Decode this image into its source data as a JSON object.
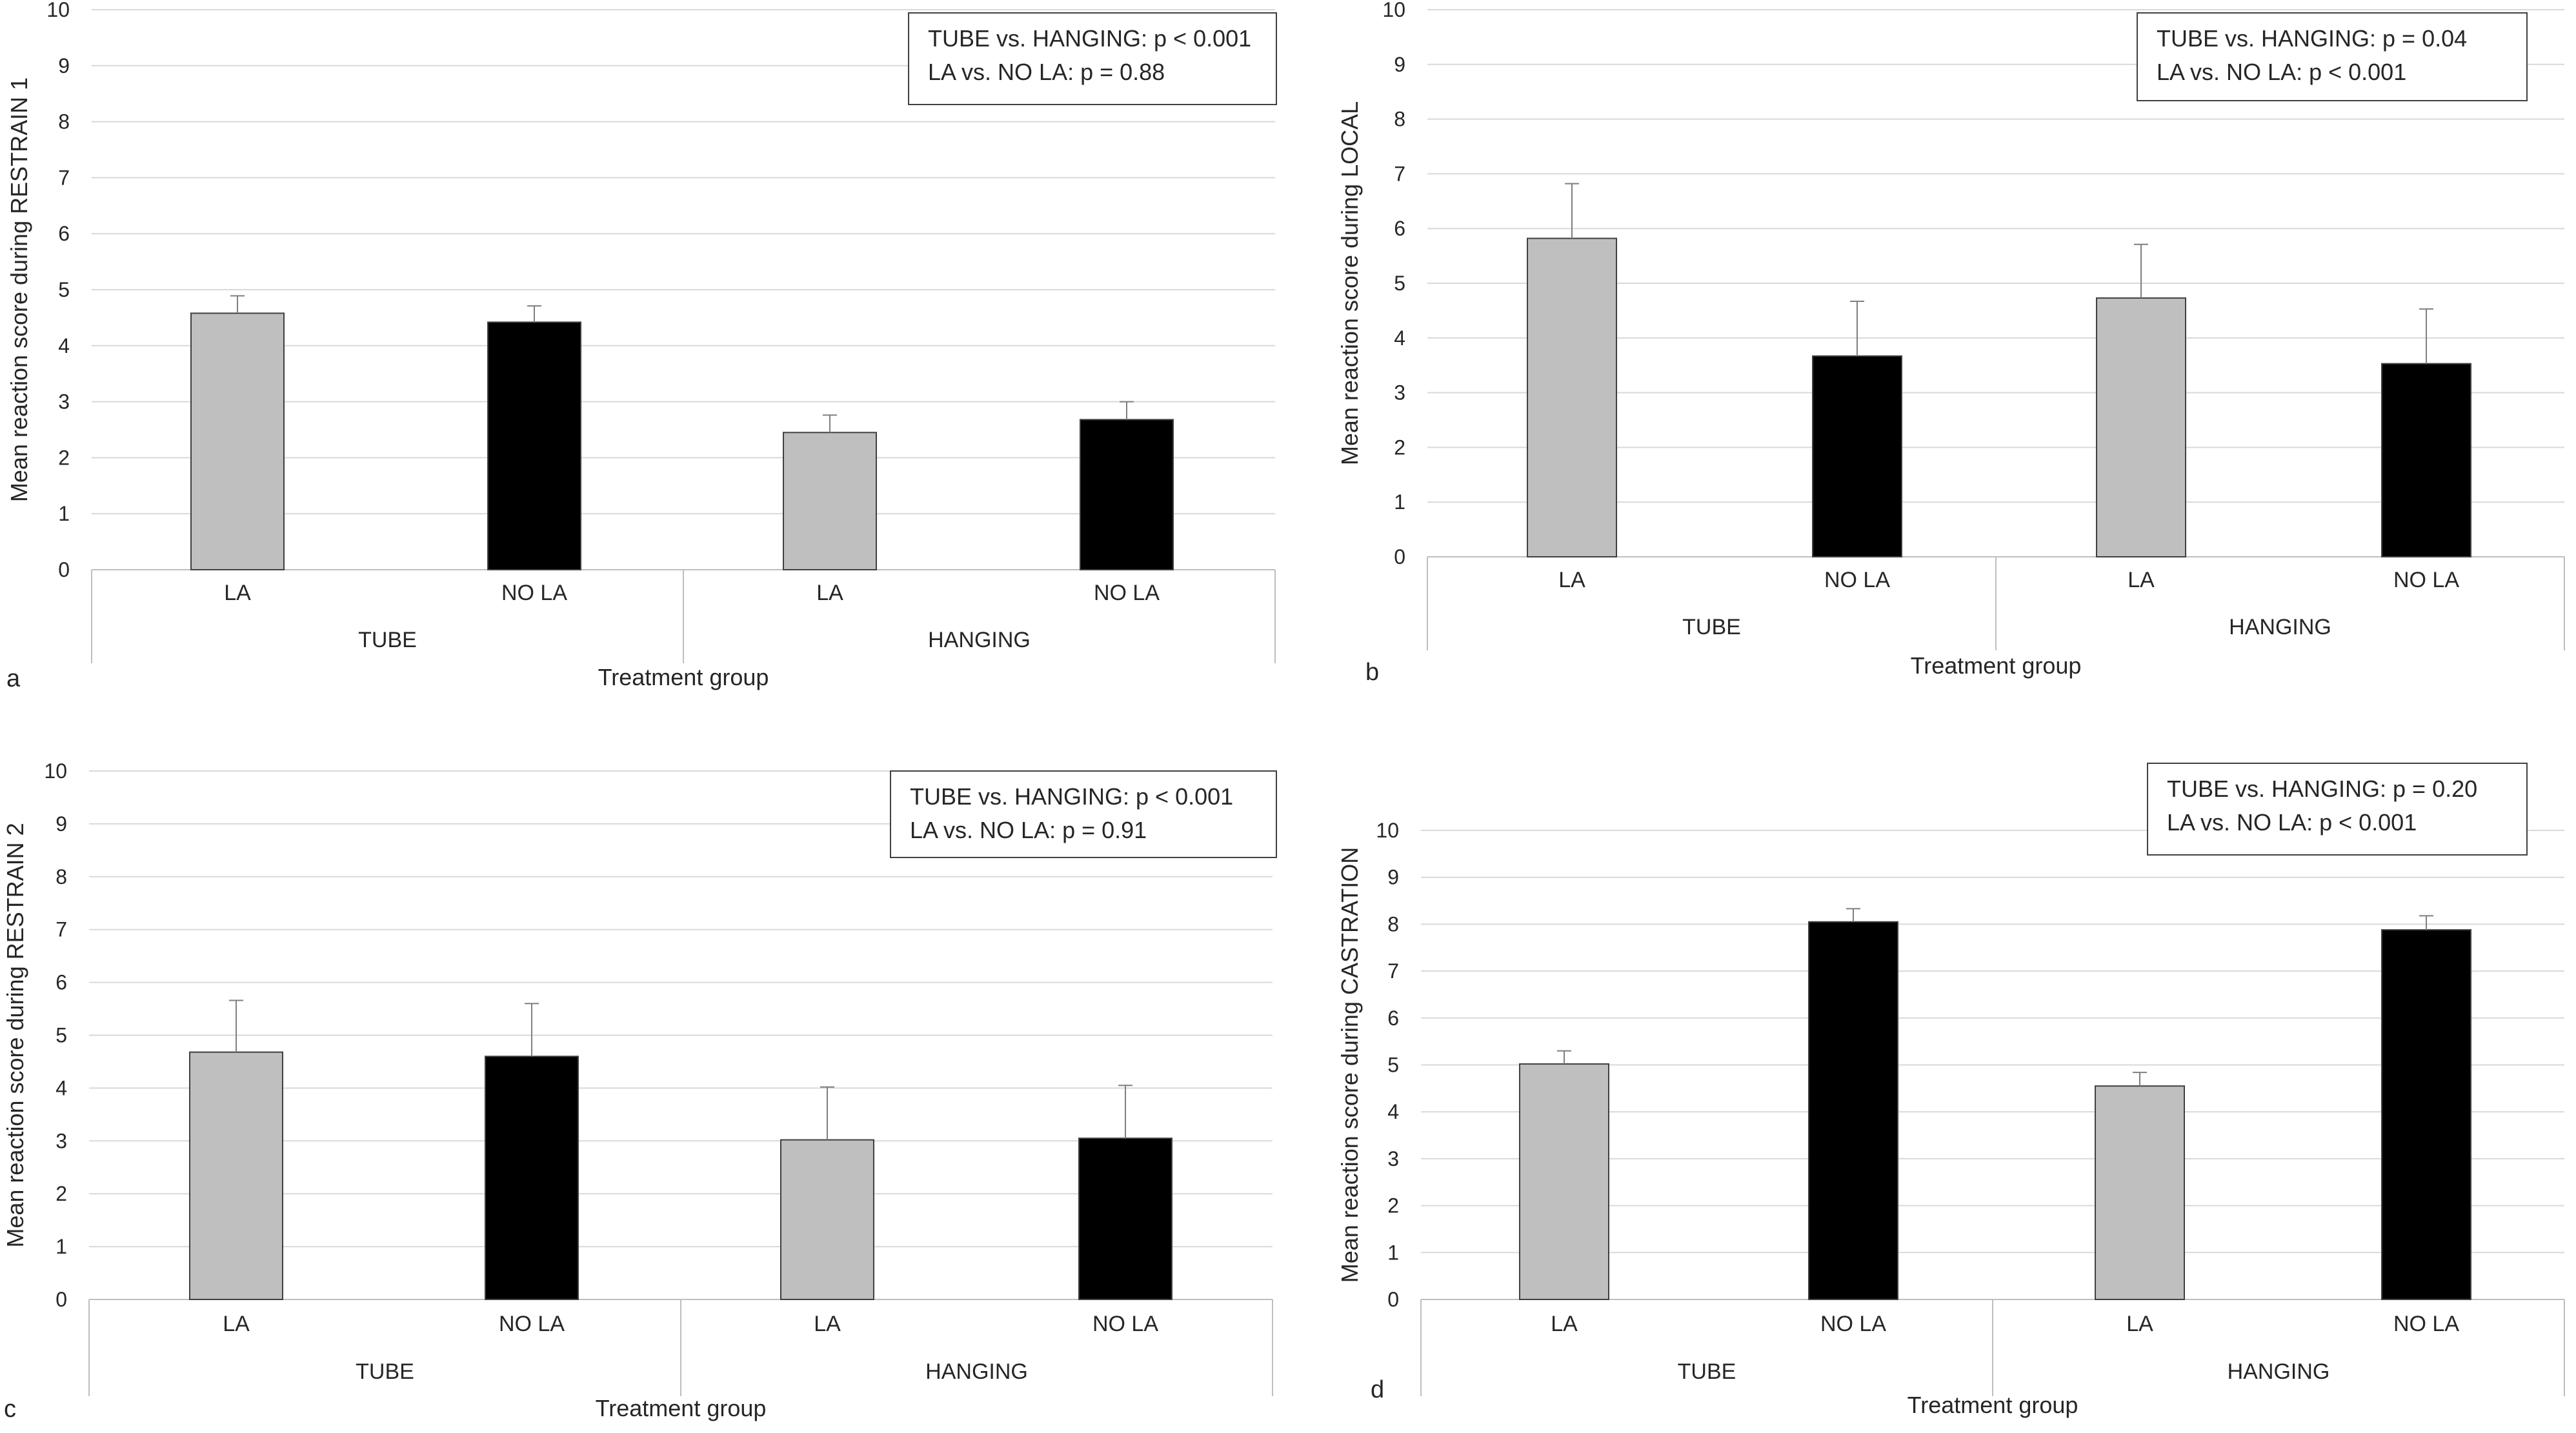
{
  "figure": {
    "panels": [
      "a",
      "b",
      "c",
      "d"
    ]
  },
  "colors": {
    "LA": "#bfbfbf",
    "NO LA": "#000000",
    "grid": "#d9d9d9",
    "axis": "#bfbfbf",
    "error": "#7f7f7f"
  },
  "chart_data": [
    {
      "type": "bar",
      "panel_label": "a",
      "title": "",
      "xlabel": "Treatment group",
      "ylabel": "Mean reaction score during RESTRAIN 1",
      "ylim": [
        0,
        10
      ],
      "yticks": [
        "0",
        "1",
        "2",
        "3",
        "4",
        "5",
        "6",
        "7",
        "8",
        "9",
        "10"
      ],
      "groups": [
        "TUBE",
        "HANGING"
      ],
      "categories": [
        "LA",
        "NO LA",
        "LA",
        "NO LA"
      ],
      "values": [
        4.58,
        4.42,
        2.45,
        2.68
      ],
      "errors": [
        0.31,
        0.29,
        0.31,
        0.32
      ],
      "bar_colors": [
        "LA",
        "NO LA",
        "LA",
        "NO LA"
      ],
      "annotations": [
        "TUBE vs. HANGING: p < 0.001",
        "LA vs. NO LA: p = 0.88"
      ]
    },
    {
      "type": "bar",
      "panel_label": "b",
      "title": "",
      "xlabel": "Treatment group",
      "ylabel": "Mean reaction score during LOCAL",
      "ylim": [
        0,
        10
      ],
      "yticks": [
        "0",
        "1",
        "2",
        "3",
        "4",
        "5",
        "6",
        "7",
        "8",
        "9",
        "10"
      ],
      "groups": [
        "TUBE",
        "HANGING"
      ],
      "categories": [
        "LA",
        "NO LA",
        "LA",
        "NO LA"
      ],
      "values": [
        5.82,
        3.67,
        4.73,
        3.53
      ],
      "errors": [
        1.0,
        1.0,
        0.98,
        1.0
      ],
      "bar_colors": [
        "LA",
        "NO LA",
        "LA",
        "NO LA"
      ],
      "annotations": [
        "TUBE vs. HANGING: p = 0.04",
        "LA vs. NO LA: p < 0.001"
      ]
    },
    {
      "type": "bar",
      "panel_label": "c",
      "title": "",
      "xlabel": "Treatment group",
      "ylabel": "Mean reaction score during RESTRAIN 2",
      "ylim": [
        0,
        10
      ],
      "yticks": [
        "0",
        "1",
        "2",
        "3",
        "4",
        "5",
        "6",
        "7",
        "8",
        "9",
        "10"
      ],
      "groups": [
        "TUBE",
        "HANGING"
      ],
      "categories": [
        "LA",
        "NO LA",
        "LA",
        "NO LA"
      ],
      "values": [
        4.68,
        4.6,
        3.02,
        3.05
      ],
      "errors": [
        0.98,
        1.0,
        1.0,
        1.0
      ],
      "bar_colors": [
        "LA",
        "NO LA",
        "LA",
        "NO LA"
      ],
      "annotations": [
        "TUBE vs. HANGING: p < 0.001",
        "LA vs. NO LA: p = 0.91"
      ]
    },
    {
      "type": "bar",
      "panel_label": "d",
      "title": "",
      "xlabel": "Treatment group",
      "ylabel": "Mean reaction score during CASTRATION",
      "ylim": [
        0,
        10
      ],
      "yticks": [
        "0",
        "1",
        "2",
        "3",
        "4",
        "5",
        "6",
        "7",
        "8",
        "9",
        "10"
      ],
      "groups": [
        "TUBE",
        "HANGING"
      ],
      "categories": [
        "LA",
        "NO LA",
        "LA",
        "NO LA"
      ],
      "values": [
        5.02,
        8.05,
        4.55,
        7.88
      ],
      "errors": [
        0.28,
        0.28,
        0.29,
        0.3
      ],
      "bar_colors": [
        "LA",
        "NO LA",
        "LA",
        "NO LA"
      ],
      "annotations": [
        "TUBE vs. HANGING: p = 0.20",
        "LA vs. NO LA: p < 0.001"
      ]
    }
  ]
}
